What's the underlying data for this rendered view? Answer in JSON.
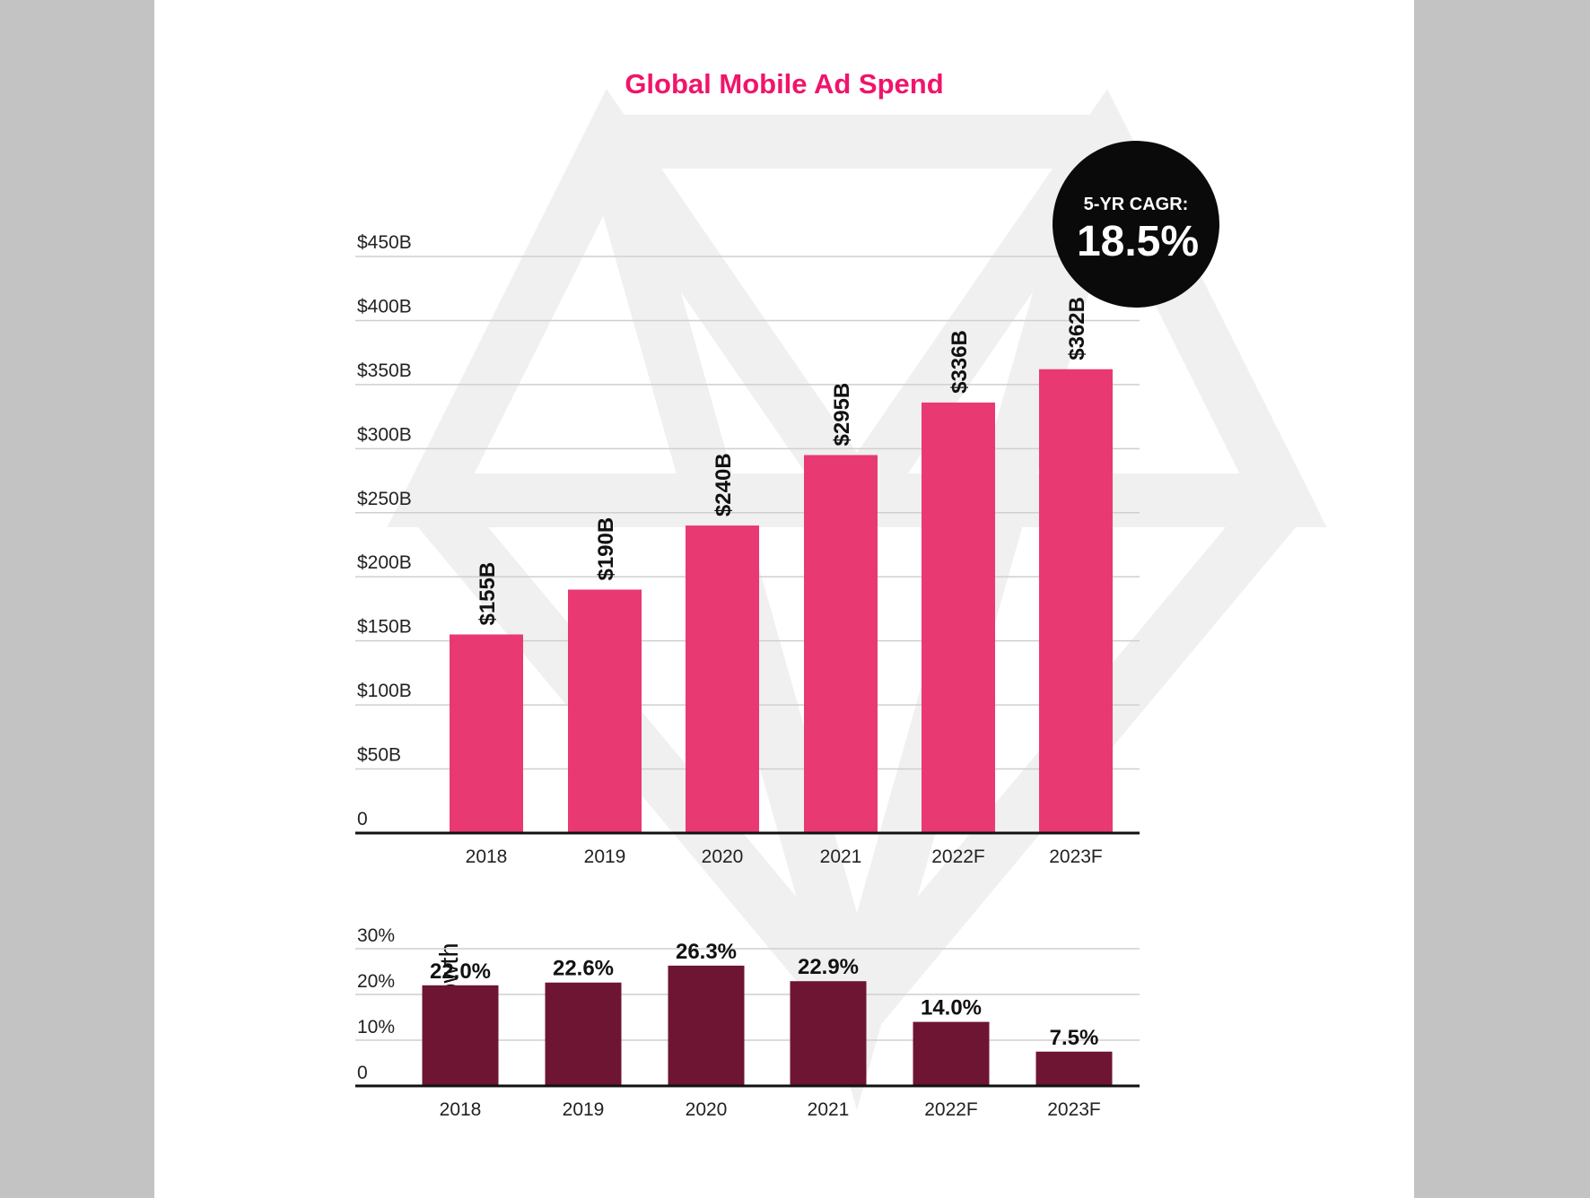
{
  "chart_data": [
    {
      "type": "bar",
      "title": "Global Mobile Ad Spend",
      "categories": [
        "2018",
        "2019",
        "2020",
        "2021",
        "2022F",
        "2023F"
      ],
      "values": [
        155,
        190,
        240,
        295,
        336,
        362
      ],
      "value_labels": [
        "$155B",
        "$190B",
        "$240B",
        "$295B",
        "$336B",
        "$362B"
      ],
      "y_ticks": [
        "0",
        "$50B",
        "$100B",
        "$150B",
        "$200B",
        "$250B",
        "$300B",
        "$350B",
        "$400B",
        "$450B"
      ],
      "ylim": [
        0,
        450
      ],
      "grid": true,
      "colors": {
        "bar": "#e8336d",
        "title": "#f0146b"
      },
      "annotation": {
        "label": "5-YR CAGR:",
        "value": "18.5%"
      }
    },
    {
      "type": "bar",
      "ylabel": "YoY Growth",
      "categories": [
        "2018",
        "2019",
        "2020",
        "2021",
        "2022F",
        "2023F"
      ],
      "values": [
        22.0,
        22.6,
        26.3,
        22.9,
        14.0,
        7.5
      ],
      "value_labels": [
        "22.0%",
        "22.6%",
        "26.3%",
        "22.9%",
        "14.0%",
        "7.5%"
      ],
      "y_ticks": [
        "0",
        "10%",
        "20%",
        "30%"
      ],
      "ylim": [
        0,
        30
      ],
      "grid": true,
      "colors": {
        "bar": "#6e1533"
      }
    }
  ]
}
